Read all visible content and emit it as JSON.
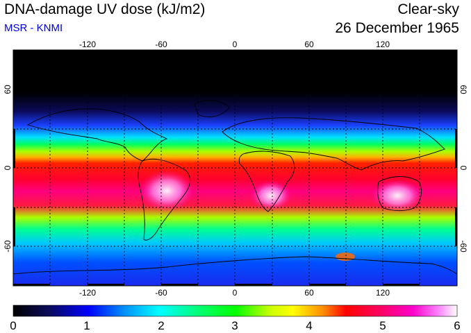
{
  "header": {
    "title": "DNA-damage UV dose (kJ/m2)",
    "credit": "MSR - KNMI",
    "condition": "Clear-sky",
    "date": "26 December 1965"
  },
  "colors": {
    "credit": "#0000dd",
    "scale": [
      "#000000",
      "#0a0a5a",
      "#0000ff",
      "#0090ff",
      "#00ffff",
      "#00ff90",
      "#00ff00",
      "#aaff00",
      "#ffff00",
      "#ffaa00",
      "#ff0000",
      "#ff0055",
      "#ff00aa",
      "#ff66ff",
      "#ffffff"
    ]
  },
  "map": {
    "lon_labels": [
      "-120",
      "-60",
      "0",
      "60",
      "120"
    ],
    "lat_labels": [
      "60",
      "0",
      "-60"
    ],
    "lon_range": [
      -180,
      180
    ],
    "lat_range": [
      -90,
      90
    ],
    "gridlines": "dotted every 30 degrees"
  },
  "colorbar": {
    "labels": [
      "0",
      "1",
      "2",
      "3",
      "4",
      "5",
      "6"
    ],
    "range": [
      0,
      6
    ]
  }
}
